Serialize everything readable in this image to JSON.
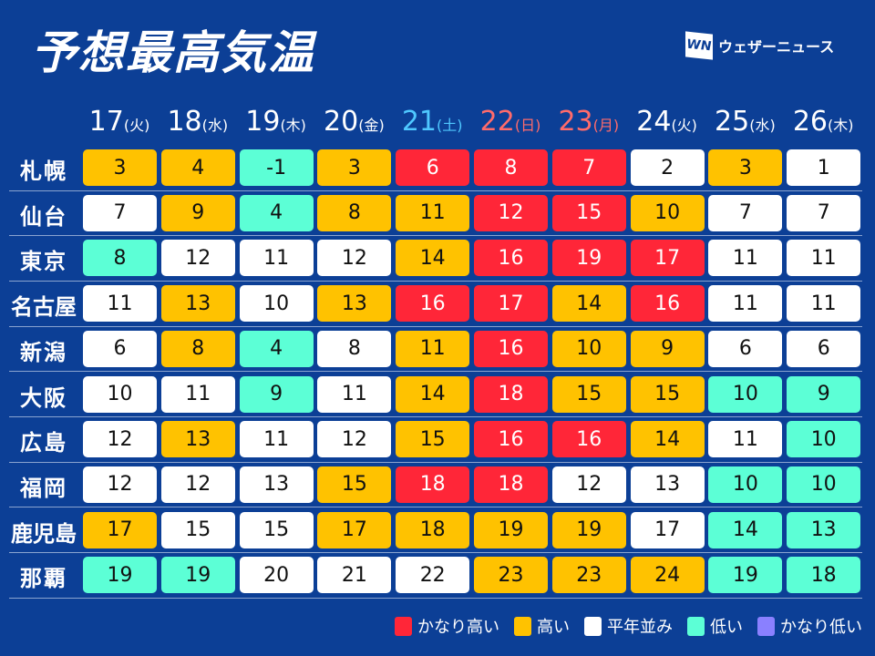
{
  "title": "予想最高気温",
  "logo": {
    "mark": "WN",
    "text": "ウェザーニュース"
  },
  "colors": {
    "background": "#0c3f96",
    "very_high": "#ff2638",
    "high": "#ffc200",
    "normal": "#ffffff",
    "low": "#5cffd6",
    "very_low": "#8a80ff",
    "saturday": "#4fc8ff",
    "holiday": "#ff6b6b"
  },
  "chart_data": {
    "type": "table",
    "columns": [
      {
        "day": "17",
        "weekday": "(火)",
        "kind": "weekday"
      },
      {
        "day": "18",
        "weekday": "(水)",
        "kind": "weekday"
      },
      {
        "day": "19",
        "weekday": "(木)",
        "kind": "weekday"
      },
      {
        "day": "20",
        "weekday": "(金)",
        "kind": "weekday"
      },
      {
        "day": "21",
        "weekday": "(土)",
        "kind": "saturday"
      },
      {
        "day": "22",
        "weekday": "(日)",
        "kind": "holiday"
      },
      {
        "day": "23",
        "weekday": "(月)",
        "kind": "holiday"
      },
      {
        "day": "24",
        "weekday": "(火)",
        "kind": "weekday"
      },
      {
        "day": "25",
        "weekday": "(水)",
        "kind": "weekday"
      },
      {
        "day": "26",
        "weekday": "(木)",
        "kind": "weekday"
      }
    ],
    "rows": [
      {
        "city": "札幌",
        "values": [
          "3",
          "4",
          "-1",
          "3",
          "6",
          "8",
          "7",
          "2",
          "3",
          "1"
        ],
        "levels": [
          "high",
          "high",
          "low",
          "high",
          "very_high",
          "very_high",
          "very_high",
          "normal",
          "high",
          "normal"
        ]
      },
      {
        "city": "仙台",
        "values": [
          "7",
          "9",
          "4",
          "8",
          "11",
          "12",
          "15",
          "10",
          "7",
          "7"
        ],
        "levels": [
          "normal",
          "high",
          "low",
          "high",
          "high",
          "very_high",
          "very_high",
          "high",
          "normal",
          "normal"
        ]
      },
      {
        "city": "東京",
        "values": [
          "8",
          "12",
          "11",
          "12",
          "14",
          "16",
          "19",
          "17",
          "11",
          "11"
        ],
        "levels": [
          "low",
          "normal",
          "normal",
          "normal",
          "high",
          "very_high",
          "very_high",
          "very_high",
          "normal",
          "normal"
        ]
      },
      {
        "city": "名古屋",
        "values": [
          "11",
          "13",
          "10",
          "13",
          "16",
          "17",
          "14",
          "16",
          "11",
          "11"
        ],
        "levels": [
          "normal",
          "high",
          "normal",
          "high",
          "very_high",
          "very_high",
          "high",
          "very_high",
          "normal",
          "normal"
        ]
      },
      {
        "city": "新潟",
        "values": [
          "6",
          "8",
          "4",
          "8",
          "11",
          "16",
          "10",
          "9",
          "6",
          "6"
        ],
        "levels": [
          "normal",
          "high",
          "low",
          "normal",
          "high",
          "very_high",
          "high",
          "high",
          "normal",
          "normal"
        ]
      },
      {
        "city": "大阪",
        "values": [
          "10",
          "11",
          "9",
          "11",
          "14",
          "18",
          "15",
          "15",
          "10",
          "9"
        ],
        "levels": [
          "normal",
          "normal",
          "low",
          "normal",
          "high",
          "very_high",
          "high",
          "high",
          "low",
          "low"
        ]
      },
      {
        "city": "広島",
        "values": [
          "12",
          "13",
          "11",
          "12",
          "15",
          "16",
          "16",
          "14",
          "11",
          "10"
        ],
        "levels": [
          "normal",
          "high",
          "normal",
          "normal",
          "high",
          "very_high",
          "very_high",
          "high",
          "normal",
          "low"
        ]
      },
      {
        "city": "福岡",
        "values": [
          "12",
          "12",
          "13",
          "15",
          "18",
          "18",
          "12",
          "13",
          "10",
          "10"
        ],
        "levels": [
          "normal",
          "normal",
          "normal",
          "high",
          "very_high",
          "very_high",
          "normal",
          "normal",
          "low",
          "low"
        ]
      },
      {
        "city": "鹿児島",
        "values": [
          "17",
          "15",
          "15",
          "17",
          "18",
          "19",
          "19",
          "17",
          "14",
          "13"
        ],
        "levels": [
          "high",
          "normal",
          "normal",
          "high",
          "high",
          "high",
          "high",
          "normal",
          "low",
          "low"
        ]
      },
      {
        "city": "那覇",
        "values": [
          "19",
          "19",
          "20",
          "21",
          "22",
          "23",
          "23",
          "24",
          "19",
          "18"
        ],
        "levels": [
          "low",
          "low",
          "normal",
          "normal",
          "normal",
          "high",
          "high",
          "high",
          "low",
          "low"
        ]
      }
    ],
    "legend": [
      {
        "key": "very_high",
        "label": "かなり高い"
      },
      {
        "key": "high",
        "label": "高い"
      },
      {
        "key": "normal",
        "label": "平年並み"
      },
      {
        "key": "low",
        "label": "低い"
      },
      {
        "key": "very_low",
        "label": "かなり低い"
      }
    ]
  }
}
